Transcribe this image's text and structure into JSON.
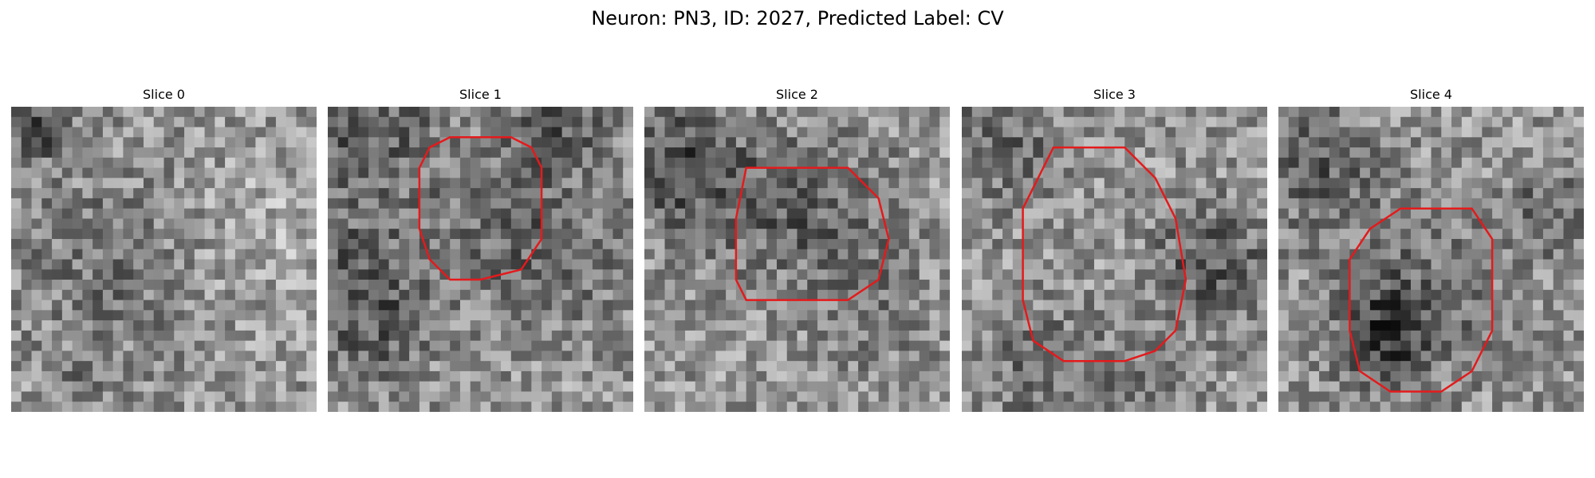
{
  "figure": {
    "title": "Neuron: PN3, ID: 2027, Predicted Label: CV"
  },
  "panels": [
    {
      "title": "Slice 0",
      "has_contour": false
    },
    {
      "title": "Slice 1",
      "has_contour": true
    },
    {
      "title": "Slice 2",
      "has_contour": true
    },
    {
      "title": "Slice 3",
      "has_contour": true
    },
    {
      "title": "Slice 4",
      "has_contour": true
    }
  ],
  "colors": {
    "contour": "#e41a1c"
  },
  "image": {
    "colormap": "grayscale",
    "grid_cells": 30
  }
}
